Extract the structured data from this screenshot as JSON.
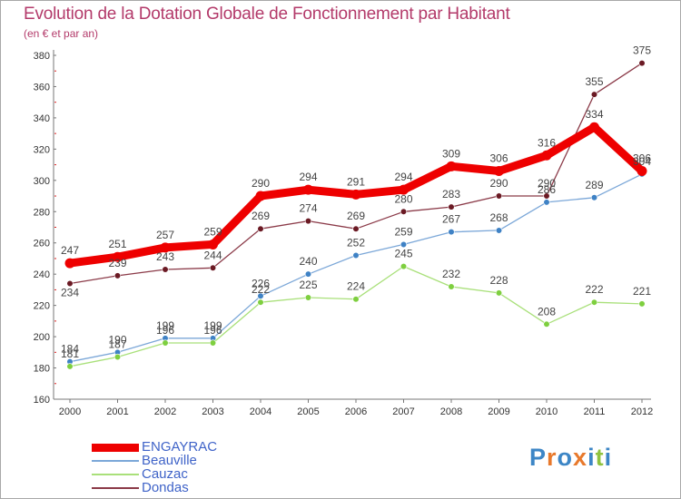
{
  "title": "Evolution de la Dotation Globale de Fonctionnement par Habitant",
  "subtitle": "(en € et par an)",
  "brand": {
    "text": "Proxiti",
    "letters": [
      {
        "ch": "P",
        "color": "#3d86c6"
      },
      {
        "ch": "r",
        "color": "#e8792c"
      },
      {
        "ch": "o",
        "color": "#3d86c6"
      },
      {
        "ch": "x",
        "color": "#e8792c"
      },
      {
        "ch": "i",
        "color": "#3d86c6"
      },
      {
        "ch": "t",
        "color": "#8fc23f"
      },
      {
        "ch": "i",
        "color": "#3d86c6"
      }
    ]
  },
  "chart_data": {
    "type": "line",
    "title": "Evolution de la Dotation Globale de Fonctionnement par Habitant",
    "subtitle": "(en € et par an)",
    "xlabel": "",
    "ylabel": "",
    "categories": [
      "2000",
      "2001",
      "2002",
      "2003",
      "2004",
      "2005",
      "2006",
      "2007",
      "2008",
      "2009",
      "2010",
      "2011",
      "2012"
    ],
    "ylim": [
      160,
      380
    ],
    "yticks": [
      160,
      180,
      200,
      220,
      240,
      260,
      280,
      300,
      320,
      340,
      360,
      380
    ],
    "grid": false,
    "legend": "bottom-left",
    "series": [
      {
        "name": "ENGAYRAC",
        "color": "#ee0000",
        "emphasis": true,
        "values": [
          247,
          251,
          257,
          259,
          290,
          294,
          291,
          294,
          309,
          306,
          316,
          334,
          306
        ]
      },
      {
        "name": "Beauville",
        "color": "#7ba7d8",
        "marker": "#3f82c5",
        "values": [
          184,
          190,
          199,
          199,
          226,
          240,
          252,
          259,
          267,
          268,
          286,
          289,
          304
        ]
      },
      {
        "name": "Cauzac",
        "color": "#a9e07a",
        "marker": "#7ecf3f",
        "values": [
          181,
          187,
          196,
          196,
          222,
          225,
          224,
          245,
          232,
          228,
          208,
          222,
          221
        ]
      },
      {
        "name": "Dondas",
        "color": "#8b3a48",
        "marker": "#6b1a24",
        "values": [
          234,
          239,
          243,
          244,
          269,
          274,
          269,
          280,
          283,
          290,
          290,
          355,
          375
        ]
      }
    ],
    "data_labels": [
      {
        "series": "ENGAYRAC",
        "values": [
          "247",
          "251",
          "257",
          "259",
          "290",
          "294",
          "291",
          "294",
          "309",
          "306",
          "316",
          "334",
          "306"
        ]
      },
      {
        "series": "Beauville",
        "values": [
          "184",
          "190",
          "199",
          "199",
          "226",
          "240",
          "252",
          "259",
          "267",
          "268",
          "286",
          "289",
          "304"
        ]
      },
      {
        "series": "Cauzac",
        "values": [
          "181",
          "187",
          "196",
          "196",
          "222",
          "225",
          "224",
          "245",
          "232",
          "228",
          "208",
          "222",
          "221"
        ]
      },
      {
        "series": "Dondas",
        "values": [
          "234",
          "239",
          "243",
          "244",
          "269",
          "274",
          "269",
          "280",
          "283",
          "290",
          "290",
          "355",
          "375"
        ]
      }
    ]
  }
}
